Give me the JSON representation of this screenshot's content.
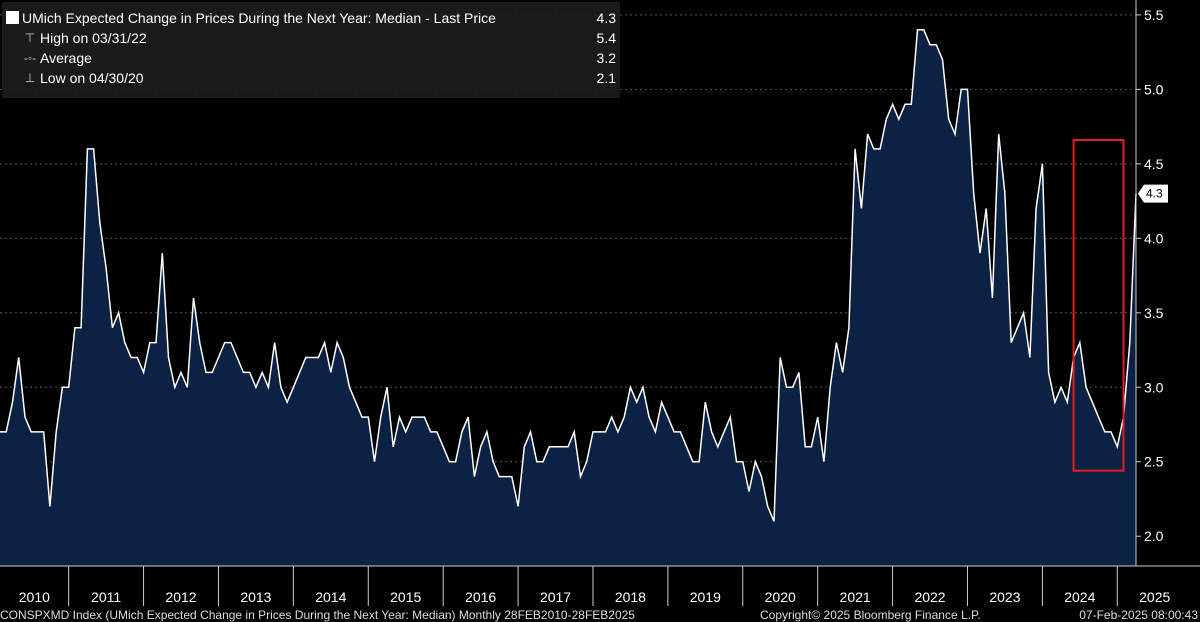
{
  "chart_data": {
    "type": "area",
    "title": "UMich Expected Change in Prices During the Next Year: Median - Last Price",
    "last_value": 4.3,
    "last_price_tag": "4.3",
    "x_start_year": 2010,
    "x_end_year": 2025,
    "ylim": [
      1.8,
      5.6
    ],
    "yticks": [
      "2.0",
      "2.5",
      "3.0",
      "3.5",
      "4.0",
      "4.5",
      "5.0",
      "5.5"
    ],
    "ytick_values": [
      2.0,
      2.5,
      3.0,
      3.5,
      4.0,
      4.5,
      5.0,
      5.5
    ],
    "xtick_labels": [
      "2010",
      "2011",
      "2012",
      "2013",
      "2014",
      "2015",
      "2016",
      "2017",
      "2018",
      "2019",
      "2020",
      "2021",
      "2022",
      "2023",
      "2024",
      "2025"
    ],
    "values": [
      2.7,
      2.7,
      2.9,
      3.2,
      2.8,
      2.7,
      2.7,
      2.7,
      2.2,
      2.7,
      3.0,
      3.0,
      3.4,
      3.4,
      4.6,
      4.6,
      4.1,
      3.8,
      3.4,
      3.5,
      3.3,
      3.2,
      3.2,
      3.1,
      3.3,
      3.3,
      3.9,
      3.2,
      3.0,
      3.1,
      3.0,
      3.6,
      3.3,
      3.1,
      3.1,
      3.2,
      3.3,
      3.3,
      3.2,
      3.1,
      3.1,
      3.0,
      3.1,
      3.0,
      3.3,
      3.0,
      2.9,
      3.0,
      3.1,
      3.2,
      3.2,
      3.2,
      3.3,
      3.1,
      3.3,
      3.2,
      3.0,
      2.9,
      2.8,
      2.8,
      2.5,
      2.8,
      3.0,
      2.6,
      2.8,
      2.7,
      2.8,
      2.8,
      2.8,
      2.7,
      2.7,
      2.6,
      2.5,
      2.5,
      2.7,
      2.8,
      2.4,
      2.6,
      2.7,
      2.5,
      2.4,
      2.4,
      2.4,
      2.2,
      2.6,
      2.7,
      2.5,
      2.5,
      2.6,
      2.6,
      2.6,
      2.6,
      2.7,
      2.4,
      2.5,
      2.7,
      2.7,
      2.7,
      2.8,
      2.7,
      2.8,
      3.0,
      2.9,
      3.0,
      2.8,
      2.7,
      2.9,
      2.8,
      2.7,
      2.7,
      2.6,
      2.5,
      2.5,
      2.9,
      2.7,
      2.6,
      2.7,
      2.8,
      2.5,
      2.5,
      2.3,
      2.5,
      2.4,
      2.2,
      2.1,
      3.2,
      3.0,
      3.0,
      3.1,
      2.6,
      2.6,
      2.8,
      2.5,
      3.0,
      3.3,
      3.1,
      3.4,
      4.6,
      4.2,
      4.7,
      4.6,
      4.6,
      4.8,
      4.9,
      4.8,
      4.9,
      4.9,
      5.4,
      5.4,
      5.3,
      5.3,
      5.2,
      4.8,
      4.7,
      5.0,
      5.0,
      4.3,
      3.9,
      4.2,
      3.6,
      4.7,
      4.3,
      3.3,
      3.4,
      3.5,
      3.2,
      4.2,
      4.5,
      3.1,
      2.9,
      3.0,
      2.9,
      3.2,
      3.3,
      3.0,
      2.9,
      2.8,
      2.7,
      2.7,
      2.6,
      2.8,
      3.3,
      4.3
    ],
    "highlight_box": {
      "x_start_index": 172,
      "x_end_index": 180,
      "y_low": 2.44,
      "y_high": 4.66,
      "color": "#e02020"
    },
    "fill_color": "#0c2244",
    "line_color": "#ffffff"
  },
  "legend": {
    "title": "UMich Expected Change in Prices During the Next Year: Median - Last Price",
    "last": "4.3",
    "rows": [
      {
        "label": "High on 03/31/22",
        "value": "5.4"
      },
      {
        "label": "Average",
        "value": "3.2"
      },
      {
        "label": "Low on 04/30/20",
        "value": "2.1"
      }
    ]
  },
  "footer": {
    "left": "CONSPXMD Index (UMich Expected Change in Prices During the Next Year: Median)  Monthly 28FEB2010-28FEB2025",
    "center": "Copyright© 2025 Bloomberg Finance L.P.",
    "right": "07-Feb-2025 08:00:43"
  }
}
